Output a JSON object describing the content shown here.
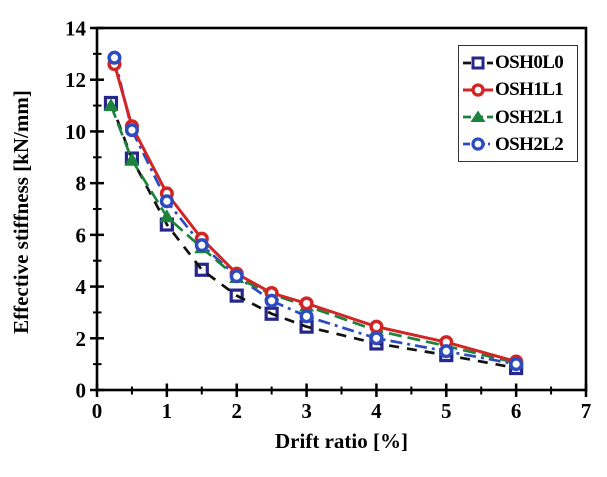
{
  "figure": {
    "background": "#ffffff",
    "frame_color": "#000000",
    "legend_border_color": "#333333"
  },
  "chart_data": {
    "type": "line",
    "title": "",
    "xlabel": "Drift ratio [%]",
    "ylabel": "Effective stiffness [kN/mm]",
    "xlim": [
      0,
      7
    ],
    "ylim": [
      0,
      14
    ],
    "x_major_ticks": [
      0,
      1,
      2,
      3,
      4,
      5,
      6,
      7
    ],
    "y_major_ticks": [
      0,
      2,
      4,
      6,
      8,
      10,
      12,
      14
    ],
    "x_minor_step": 0.5,
    "y_minor_step": 1,
    "grid": false,
    "legend_position": "top-right",
    "series": [
      {
        "name": "OSH0L0",
        "marker": "open-square",
        "marker_color": "#26268c",
        "line_color": "#111111",
        "line_style": "dashed",
        "x": [
          0.2,
          0.5,
          1,
          1.5,
          2,
          2.5,
          3,
          4,
          5,
          6
        ],
        "y": [
          11.1,
          8.95,
          6.4,
          4.65,
          3.65,
          2.95,
          2.45,
          1.8,
          1.35,
          0.85
        ]
      },
      {
        "name": "OSH1L1",
        "marker": "open-circle",
        "marker_color": "#d22525",
        "line_color": "#d22525",
        "line_style": "solid",
        "x": [
          0.25,
          0.5,
          1,
          1.5,
          2,
          2.5,
          3,
          4,
          5,
          6
        ],
        "y": [
          12.6,
          10.2,
          7.6,
          5.85,
          4.5,
          3.75,
          3.35,
          2.45,
          1.85,
          1.1
        ]
      },
      {
        "name": "OSH2L1",
        "marker": "filled-triangle",
        "marker_color": "#1c823c",
        "line_color": "#1c823c",
        "line_style": "dashed-long",
        "x": [
          0.2,
          0.5,
          1,
          1.5,
          2,
          2.5,
          3,
          4,
          5,
          6
        ],
        "y": [
          11.0,
          8.9,
          6.7,
          5.5,
          4.35,
          3.7,
          3.25,
          2.3,
          1.7,
          1.05
        ]
      },
      {
        "name": "OSH2L2",
        "marker": "open-circle",
        "marker_color": "#2d4cc0",
        "line_color": "#2d4cc0",
        "line_style": "dash-dot",
        "x": [
          0.25,
          0.5,
          1,
          1.5,
          2,
          2.5,
          3,
          4,
          5,
          6
        ],
        "y": [
          12.85,
          10.05,
          7.3,
          5.6,
          4.4,
          3.45,
          2.85,
          2.0,
          1.5,
          1.0
        ]
      }
    ]
  }
}
